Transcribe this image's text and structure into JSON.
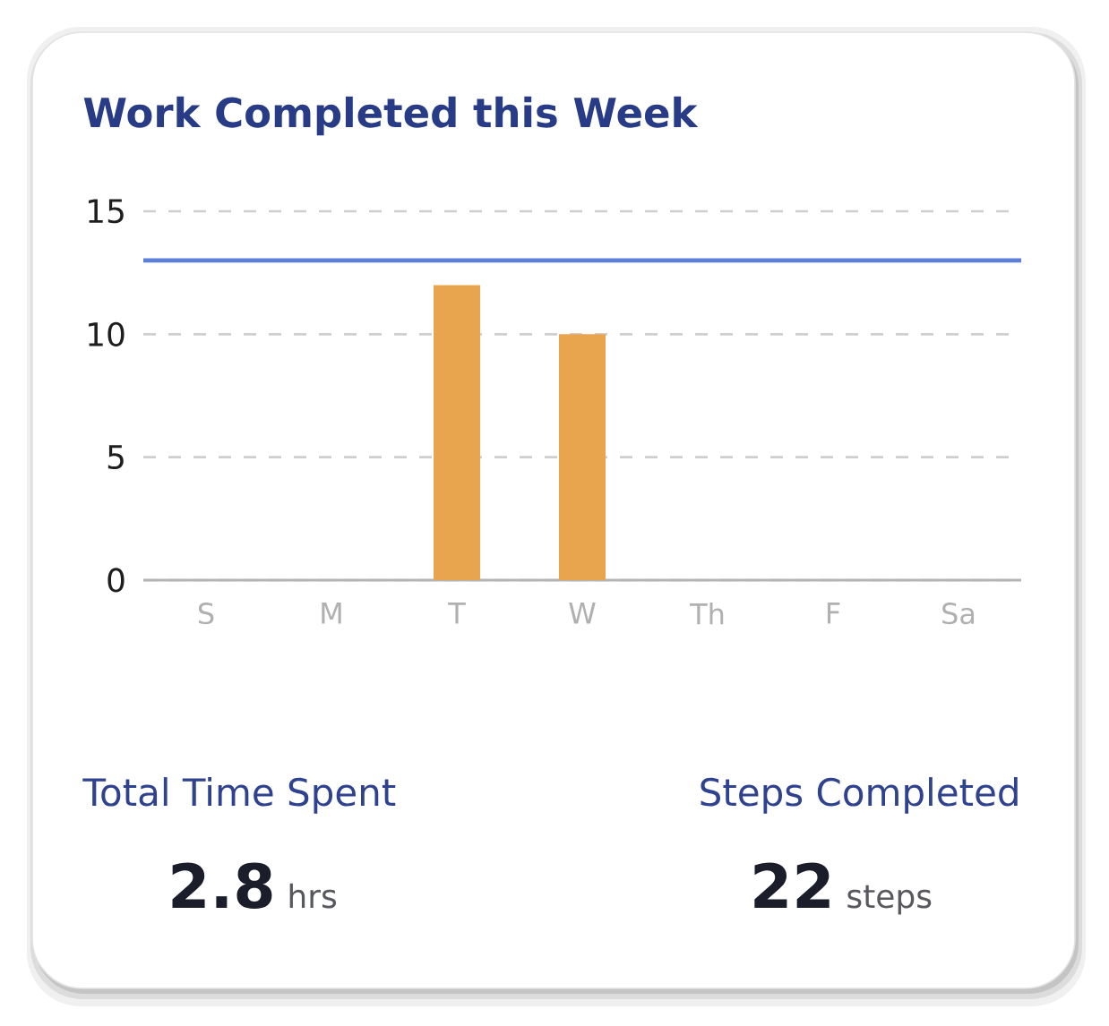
{
  "chart_data": {
    "type": "bar",
    "title": "Work Completed this Week",
    "categories": [
      "S",
      "M",
      "T",
      "W",
      "Th",
      "F",
      "Sa"
    ],
    "values": [
      0,
      0,
      12,
      10,
      0,
      0,
      0
    ],
    "color": "#e8a54d",
    "ylim": [
      0,
      15
    ],
    "yticks": [
      0,
      5,
      10,
      15
    ],
    "grid": "y",
    "ref_lines": [
      {
        "axis": "y",
        "value": 13,
        "color": "#5b7fdb"
      }
    ],
    "annotations": [
      "Total Time Spent",
      "2.8",
      "hrs",
      "Steps Completed",
      "22",
      "steps"
    ]
  }
}
